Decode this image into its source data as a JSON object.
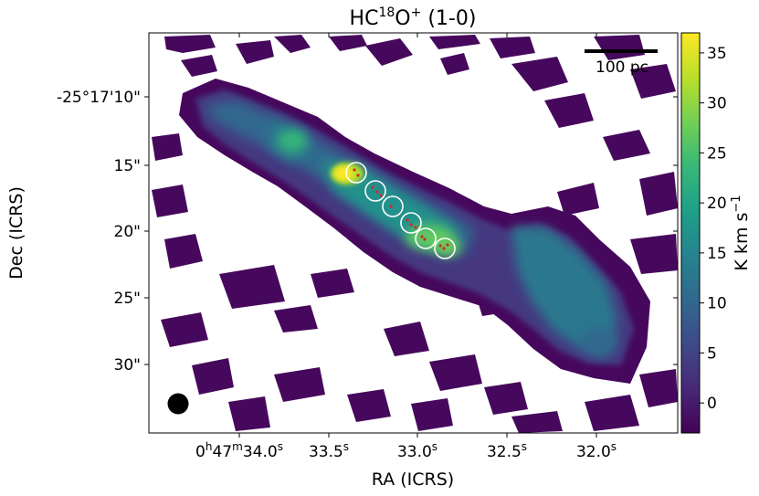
{
  "chart_data": {
    "type": "heatmap",
    "title": {
      "molecule_prefix": "HC",
      "isotope": "18",
      "atom": "O",
      "charge": "+",
      "transition": " (1-0)"
    },
    "xlabel": "RA (ICRS)",
    "ylabel": "Dec (ICRS)",
    "colorbar": {
      "label": "K km s",
      "label_exponent": "−1",
      "colormap": "viridis",
      "vmin": -3,
      "vmax": 37,
      "ticks": [
        "0",
        "5",
        "10",
        "15",
        "20",
        "25",
        "30",
        "35"
      ],
      "tick_values": [
        0,
        5,
        10,
        15,
        20,
        25,
        30,
        35
      ]
    },
    "x_ticks": [
      {
        "h": "0",
        "m": "47",
        "s": "34.0",
        "su": "s"
      },
      {
        "s": "33.5",
        "su": "s"
      },
      {
        "s": "33.0",
        "su": "s"
      },
      {
        "s": "32.5",
        "su": "s"
      },
      {
        "s": "32.0",
        "su": "s"
      }
    ],
    "y_ticks": [
      "-25°17'10\"",
      "15\"",
      "20\"",
      "25\"",
      "30\""
    ],
    "scale_bar": {
      "label": "100 pc"
    },
    "beam": {
      "shape": "circle",
      "color": "#000000"
    },
    "features": {
      "bright_peak_intensity": 37,
      "secondary_peak_intensity": 28,
      "ring_count": 6,
      "ring_color": "#ffffff",
      "marker_color": "#d62728"
    },
    "grid": false,
    "legend": "none"
  }
}
